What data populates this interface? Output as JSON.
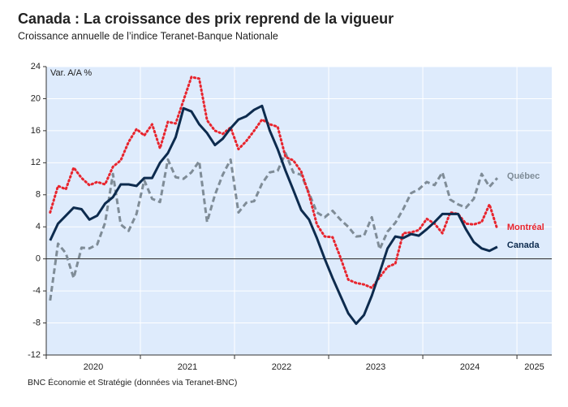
{
  "chart_data": {
    "type": "line",
    "title": "Canada : La croissance des prix reprend de la vigueur",
    "subtitle": "Croissance annuelle de l’indice Teranet-Banque Nationale",
    "y_label": "Var. A/A %",
    "source": "BNC Économie et Stratégie (données via Teranet-BNC)",
    "x": [
      "2020-01",
      "2020-02",
      "2020-03",
      "2020-04",
      "2020-05",
      "2020-06",
      "2020-07",
      "2020-08",
      "2020-09",
      "2020-10",
      "2020-11",
      "2020-12",
      "2021-01",
      "2021-02",
      "2021-03",
      "2021-04",
      "2021-05",
      "2021-06",
      "2021-07",
      "2021-08",
      "2021-09",
      "2021-10",
      "2021-11",
      "2021-12",
      "2022-01",
      "2022-02",
      "2022-03",
      "2022-04",
      "2022-05",
      "2022-06",
      "2022-07",
      "2022-08",
      "2022-09",
      "2022-10",
      "2022-11",
      "2022-12",
      "2023-01",
      "2023-02",
      "2023-03",
      "2023-04",
      "2023-05",
      "2023-06",
      "2023-07",
      "2023-08",
      "2023-09",
      "2023-10",
      "2023-11",
      "2023-12",
      "2024-01",
      "2024-02",
      "2024-03",
      "2024-04",
      "2024-05",
      "2024-06",
      "2024-07",
      "2024-08",
      "2024-09",
      "2024-10"
    ],
    "series": [
      {
        "name": "Québec",
        "color": "#7f8c97",
        "style": "dashed",
        "values": [
          -5.2,
          1.9,
          0.7,
          -2.4,
          1.4,
          1.3,
          1.8,
          4.5,
          10.6,
          4.3,
          3.5,
          5.6,
          9.8,
          7.5,
          7.1,
          12.4,
          10.2,
          10.0,
          10.8,
          12.2,
          4.6,
          8.0,
          10.5,
          12.4,
          5.8,
          7.0,
          7.2,
          9.4,
          10.8,
          11.0,
          13.2,
          10.8,
          10.5,
          8.2,
          5.8,
          5.2,
          6.0,
          4.9,
          4.0,
          2.8,
          2.9,
          5.2,
          1.2,
          3.4,
          4.5,
          6.2,
          8.2,
          8.7,
          9.6,
          9.2,
          10.8,
          7.4,
          6.8,
          6.4,
          7.5,
          10.6,
          9.0,
          10.1
        ]
      },
      {
        "name": "Montréal",
        "color": "#e8252e",
        "style": "dotted",
        "values": [
          5.8,
          9.1,
          8.7,
          11.4,
          10.1,
          9.2,
          9.6,
          9.3,
          11.5,
          12.3,
          14.6,
          16.2,
          15.4,
          16.8,
          13.8,
          17.1,
          16.9,
          19.8,
          22.7,
          22.5,
          17.3,
          16.0,
          15.6,
          16.4,
          13.7,
          14.7,
          16.0,
          17.4,
          16.8,
          16.5,
          12.7,
          12.3,
          10.9,
          8.0,
          4.3,
          2.8,
          2.7,
          0.2,
          -2.6,
          -3.0,
          -3.2,
          -3.6,
          -2.3,
          -1.0,
          -0.6,
          3.2,
          3.3,
          3.6,
          5.0,
          4.4,
          3.2,
          5.8,
          5.6,
          4.4,
          4.3,
          4.6,
          6.8,
          3.7
        ]
      },
      {
        "name": "Canada",
        "color": "#0d2b4e",
        "style": "solid",
        "values": [
          2.3,
          4.4,
          5.4,
          6.4,
          6.2,
          4.9,
          5.4,
          6.9,
          7.7,
          9.3,
          9.3,
          9.1,
          10.1,
          10.1,
          12.0,
          13.2,
          15.2,
          18.8,
          18.4,
          16.8,
          15.7,
          14.2,
          15.0,
          16.3,
          17.4,
          17.8,
          18.6,
          19.1,
          16.0,
          13.7,
          11.0,
          8.6,
          6.1,
          4.9,
          2.6,
          0,
          -2.4,
          -4.6,
          -6.8,
          -8.1,
          -7.0,
          -4.6,
          -1.7,
          1.3,
          2.8,
          2.6,
          3.1,
          2.9,
          3.7,
          4.6,
          5.6,
          5.6,
          5.6,
          3.7,
          2.1,
          1.3,
          1.0,
          1.5
        ]
      }
    ],
    "ylim": [
      -12,
      24
    ],
    "yticks": [
      -12,
      -8,
      -4,
      0,
      4,
      8,
      12,
      16,
      20,
      24
    ],
    "xlim": [
      2020,
      2025.37
    ],
    "xticks": [
      2020,
      2021,
      2022,
      2023,
      2024,
      2025
    ],
    "grid": true,
    "background": "#deebfc"
  }
}
